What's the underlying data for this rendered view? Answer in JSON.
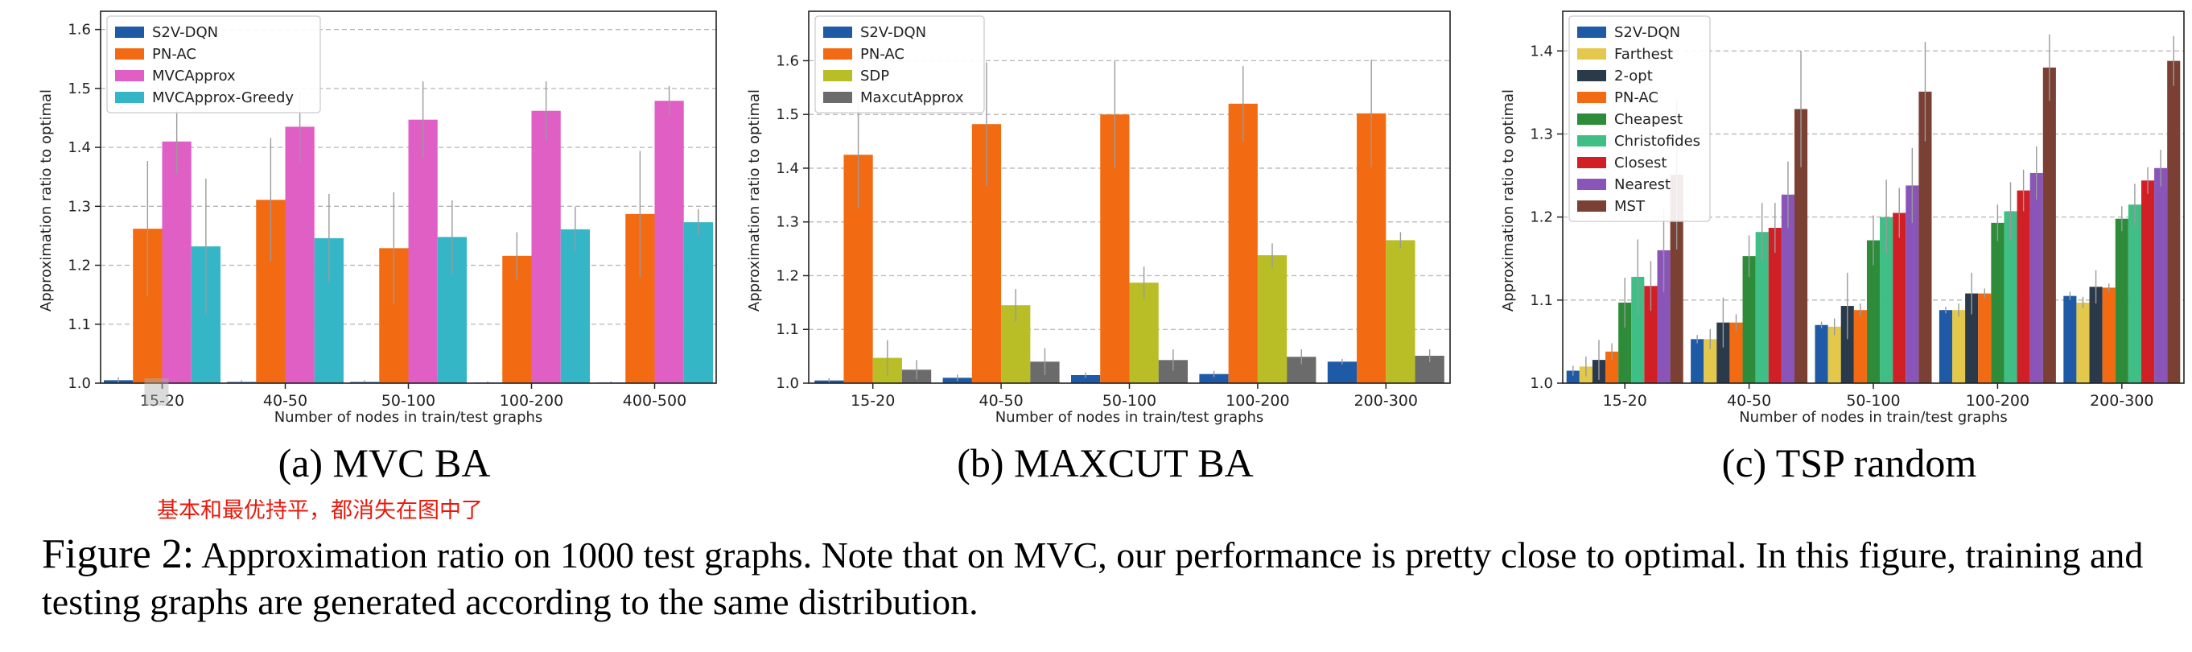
{
  "annotation": "基本和最优持平，都消失在图中了",
  "caption": {
    "lead": "Figure 2:",
    "text": "Approximation ratio on 1000 test graphs. Note that on MVC, our performance is pretty close to optimal. In this figure, training and testing graphs are generated according to the same distribution."
  },
  "chart_data": [
    {
      "type": "bar",
      "subtitle": "(a) MVC BA",
      "xlabel": "Number of nodes in train/test graphs",
      "ylabel": "Approximation ratio to optimal",
      "ylim": [
        1.0,
        1.62
      ],
      "yticks": [
        1.0,
        1.1,
        1.2,
        1.3,
        1.4,
        1.5,
        1.6
      ],
      "grid": true,
      "legend_position": "top-left",
      "categories": [
        "15-20",
        "40-50",
        "50-100",
        "100-200",
        "400-500"
      ],
      "series": [
        {
          "name": "S2V-DQN",
          "color": "#1f5aa6",
          "values": [
            1.005,
            1.002,
            1.002,
            1.001,
            1.001
          ],
          "err": [
            0.005,
            0.003,
            0.003,
            0.002,
            0.002
          ]
        },
        {
          "name": "PN-AC",
          "color": "#f26b12",
          "values": [
            1.262,
            1.311,
            1.229,
            1.216,
            1.287
          ],
          "err": [
            0.115,
            0.105,
            0.095,
            0.04,
            0.107
          ]
        },
        {
          "name": "MVCApprox",
          "color": "#e05fc4",
          "values": [
            1.41,
            1.435,
            1.447,
            1.462,
            1.479
          ],
          "err": [
            0.055,
            0.06,
            0.065,
            0.05,
            0.025
          ]
        },
        {
          "name": "MVCApprox-Greedy",
          "color": "#35b6c7",
          "values": [
            1.232,
            1.246,
            1.248,
            1.261,
            1.273
          ],
          "err": [
            0.115,
            0.075,
            0.062,
            0.038,
            0.022
          ]
        }
      ]
    },
    {
      "type": "bar",
      "subtitle": "(b) MAXCUT BA",
      "xlabel": "Number of nodes in train/test graphs",
      "ylabel": "Approximation ratio to optimal",
      "ylim": [
        1.0,
        1.68
      ],
      "yticks": [
        1.0,
        1.1,
        1.2,
        1.3,
        1.4,
        1.5,
        1.6
      ],
      "grid": true,
      "legend_position": "top-left",
      "categories": [
        "15-20",
        "40-50",
        "50-100",
        "100-200",
        "200-300"
      ],
      "series": [
        {
          "name": "S2V-DQN",
          "color": "#1f5aa6",
          "values": [
            1.005,
            1.01,
            1.015,
            1.017,
            1.04
          ],
          "err": [
            0.004,
            0.006,
            0.005,
            0.006,
            0.005
          ]
        },
        {
          "name": "PN-AC",
          "color": "#f26b12",
          "values": [
            1.425,
            1.482,
            1.5,
            1.52,
            1.502
          ],
          "err": [
            0.1,
            0.115,
            0.1,
            0.07,
            0.1
          ]
        },
        {
          "name": "SDP",
          "color": "#b9bd26",
          "values": [
            1.047,
            1.145,
            1.187,
            1.238,
            1.266
          ],
          "err": [
            0.033,
            0.03,
            0.03,
            0.022,
            0.015
          ]
        },
        {
          "name": "MaxcutApprox",
          "color": "#6b6b6b",
          "values": [
            1.025,
            1.04,
            1.043,
            1.049,
            1.051
          ],
          "err": [
            0.018,
            0.025,
            0.02,
            0.014,
            0.012
          ]
        }
      ]
    },
    {
      "type": "bar",
      "subtitle": "(c) TSP random",
      "xlabel": "Number of nodes in train/test graphs",
      "ylabel": "Approximation ratio to optimal",
      "ylim": [
        1.0,
        1.44
      ],
      "yticks": [
        1.0,
        1.1,
        1.2,
        1.3,
        1.4
      ],
      "grid": true,
      "legend_position": "top-left",
      "categories": [
        "15-20",
        "40-50",
        "50-100",
        "100-200",
        "200-300"
      ],
      "series": [
        {
          "name": "S2V-DQN",
          "color": "#1f5aa6",
          "values": [
            1.015,
            1.053,
            1.07,
            1.088,
            1.105
          ],
          "err": [
            0.006,
            0.005,
            0.004,
            0.004,
            0.005
          ]
        },
        {
          "name": "Farthest",
          "color": "#e3c84c",
          "values": [
            1.02,
            1.053,
            1.068,
            1.088,
            1.097
          ],
          "err": [
            0.012,
            0.012,
            0.01,
            0.008,
            0.007
          ]
        },
        {
          "name": "2-opt",
          "color": "#2b3a4a",
          "values": [
            1.028,
            1.073,
            1.093,
            1.108,
            1.116
          ],
          "err": [
            0.024,
            0.03,
            0.04,
            0.025,
            0.02
          ]
        },
        {
          "name": "PN-AC",
          "color": "#f26b12",
          "values": [
            1.038,
            1.073,
            1.088,
            1.108,
            1.115
          ],
          "err": [
            0.01,
            0.01,
            0.008,
            0.006,
            0.005
          ]
        },
        {
          "name": "Cheapest",
          "color": "#2e8b3a",
          "values": [
            1.097,
            1.153,
            1.172,
            1.193,
            1.198
          ],
          "err": [
            0.03,
            0.025,
            0.03,
            0.022,
            0.015
          ]
        },
        {
          "name": "Christofides",
          "color": "#3fbf86",
          "values": [
            1.128,
            1.182,
            1.2,
            1.207,
            1.215
          ],
          "err": [
            0.045,
            0.035,
            0.045,
            0.035,
            0.025
          ]
        },
        {
          "name": "Closest",
          "color": "#d11f26",
          "values": [
            1.117,
            1.187,
            1.205,
            1.232,
            1.244
          ],
          "err": [
            0.03,
            0.03,
            0.03,
            0.025,
            0.016
          ]
        },
        {
          "name": "Nearest",
          "color": "#8a55b8",
          "values": [
            1.16,
            1.227,
            1.238,
            1.253,
            1.259
          ],
          "err": [
            0.05,
            0.04,
            0.045,
            0.032,
            0.022
          ]
        },
        {
          "name": "MST",
          "color": "#7a4033",
          "values": [
            1.251,
            1.33,
            1.351,
            1.38,
            1.388
          ],
          "err": [
            0.09,
            0.07,
            0.06,
            0.04,
            0.03
          ]
        }
      ]
    }
  ]
}
